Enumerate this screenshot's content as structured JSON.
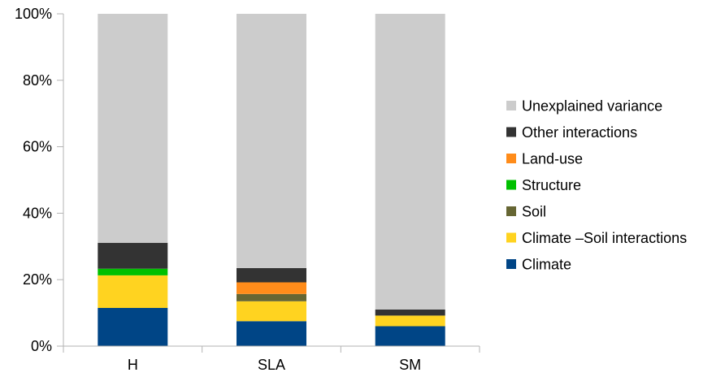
{
  "chart_data": {
    "type": "bar",
    "stacked": true,
    "percent": true,
    "categories": [
      "H",
      "SLA",
      "SM"
    ],
    "ylim": [
      0,
      100
    ],
    "yticks": [
      "0%",
      "20%",
      "40%",
      "60%",
      "80%",
      "100%"
    ],
    "grid": false,
    "legend_position": "right",
    "series": [
      {
        "name": "Climate",
        "color": "#004586",
        "values": [
          11.5,
          7.5,
          6.0
        ]
      },
      {
        "name": "Climate –Soil interactions",
        "color": "#ffd320",
        "values": [
          9.8,
          6.0,
          3.2
        ]
      },
      {
        "name": "Soil",
        "color": "#666633",
        "values": [
          0,
          2.2,
          0
        ]
      },
      {
        "name": "Structure",
        "color": "#00c000",
        "values": [
          2.0,
          0,
          0
        ]
      },
      {
        "name": "Land-use",
        "color": "#ff8c1a",
        "values": [
          0,
          3.5,
          0
        ]
      },
      {
        "name": "Other interactions",
        "color": "#333333",
        "values": [
          7.8,
          4.3,
          1.8
        ]
      },
      {
        "name": "Unexplained variance",
        "color": "#cccccc",
        "values": [
          68.9,
          76.5,
          89.0
        ]
      }
    ]
  }
}
